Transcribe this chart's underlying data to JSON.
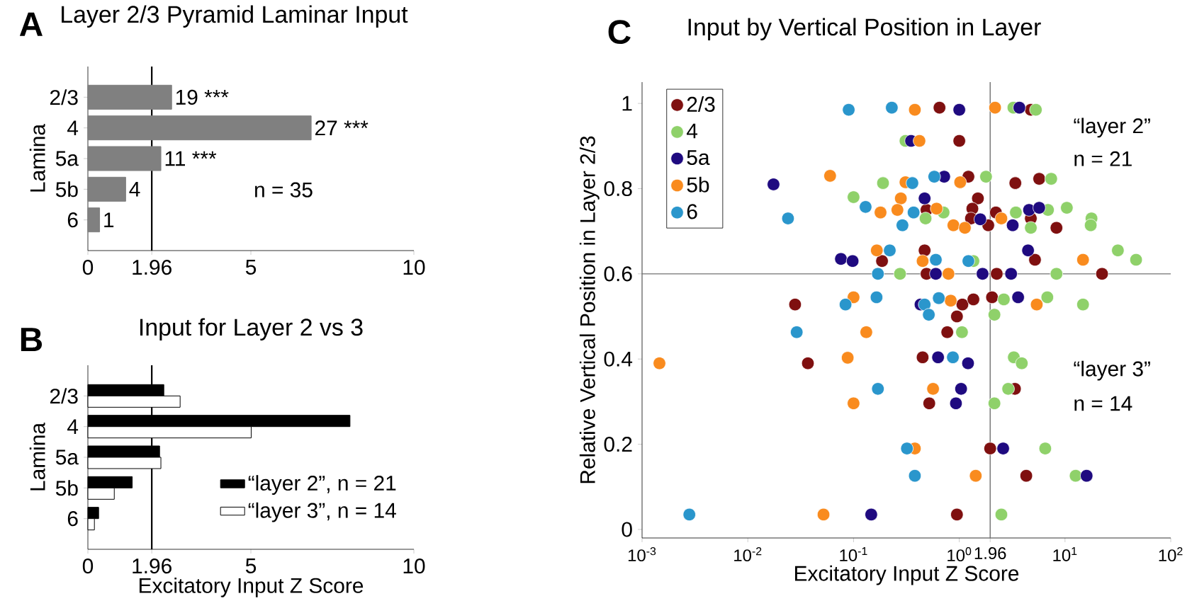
{
  "chart_data": [
    {
      "type": "bar",
      "orientation": "horizontal",
      "title": "Layer 2/3 Pyramid Laminar Input",
      "ylabel": "Lamina",
      "annotations": [
        "A",
        "n = 35",
        {
          "text": "19 ***",
          "x": 2.57,
          "y": "2/3"
        },
        {
          "text": "27 ***",
          "x": 6.85,
          "y": "4"
        },
        {
          "text": "11 ***",
          "x": 2.24,
          "y": "5a"
        },
        {
          "text": "4",
          "x": 1.16,
          "y": "5b"
        },
        {
          "text": "1",
          "x": 0.36,
          "y": "6"
        }
      ],
      "categories": [
        "2/3",
        "4",
        "5a",
        "5b",
        "6"
      ],
      "values": [
        2.57,
        6.85,
        2.24,
        1.16,
        0.36
      ],
      "color": "#808080",
      "xlim": [
        0,
        10
      ],
      "xticks": [
        0,
        1.96,
        5,
        10
      ],
      "ref_lines": [
        {
          "axis": "x",
          "value": 1.96,
          "color": "#000000"
        }
      ],
      "legend": false
    },
    {
      "type": "bar",
      "orientation": "horizontal",
      "title": "Input for Layer 2 vs 3",
      "xlabel": "Excitatory Input Z Score",
      "ylabel": "Lamina",
      "annotations": [
        "B"
      ],
      "categories": [
        "2/3",
        "4",
        "5a",
        "5b",
        "6"
      ],
      "series": [
        {
          "name": "“layer 2”, n = 21",
          "color": "#000000",
          "values": [
            2.33,
            8.04,
            2.2,
            1.36,
            0.33
          ]
        },
        {
          "name": "“layer 3”, n = 14",
          "color": "#ffffff",
          "values": [
            2.83,
            5.01,
            2.24,
            0.81,
            0.2
          ]
        }
      ],
      "xlim": [
        0,
        10
      ],
      "xticks": [
        0,
        1.96,
        5,
        10
      ],
      "ref_lines": [
        {
          "axis": "x",
          "value": 1.96,
          "color": "#000000"
        }
      ],
      "legend": "bottom right"
    },
    {
      "type": "scatter",
      "title": "Input by Vertical Position in Layer",
      "xlabel": "Excitatory Input Z Score",
      "ylabel": "Relative Vertical Position in Layer 2/3",
      "annotations": [
        "C",
        "“layer 2”",
        "n = 21",
        "“layer 3”",
        "n = 14"
      ],
      "log": "x",
      "marker": "circle",
      "legend": "top left",
      "xlim": [
        0.001,
        100
      ],
      "xticks": [
        {
          "value": 0.001,
          "label": "10$^{-3}$"
        },
        {
          "value": 0.01,
          "label": "10$^{-2}$"
        },
        {
          "value": 0.1,
          "label": "10$^{-1}$"
        },
        {
          "value": 1,
          "label": "10$^{0}$"
        },
        1.96,
        {
          "value": 10,
          "label": "10$^{1}$"
        },
        {
          "value": 100,
          "label": "10$^{2}$"
        }
      ],
      "ylim": [
        -0.02,
        1.05
      ],
      "yticks": [
        0,
        0.2,
        0.4,
        0.6,
        0.8,
        1
      ],
      "ref_lines": [
        {
          "axis": "x",
          "value": 1.96,
          "color": "#707070"
        },
        {
          "axis": "y",
          "value": 0.6,
          "color": "#707070"
        }
      ],
      "series": [
        {
          "name": "2/3",
          "color": "#7f1010",
          "x": [
            0.028,
            0.037,
            1.07,
            1.36,
            0.95,
            2.04,
            0.77,
            0.45,
            3.36,
            0.52,
            1.96,
            4.3,
            0.95,
            0.65,
            4.75,
            1.0,
            1.22,
            3.39,
            5.7,
            0.49,
            1.5,
            1.33,
            1.29,
            2.22,
            1.88,
            4.75,
            8.3,
            5.2,
            0.186,
            0.47,
            0.49,
            2.26,
            22.4
          ],
          "values": [
            0.528,
            0.39,
            0.528,
            0.54,
            0.5,
            0.545,
            0.463,
            0.404,
            0.33,
            0.296,
            0.19,
            0.126,
            0.035,
            0.99,
            0.985,
            0.912,
            0.828,
            0.813,
            0.823,
            0.75,
            0.777,
            0.753,
            0.73,
            0.744,
            0.714,
            0.73,
            0.708,
            0.633,
            0.63,
            0.655,
            0.6,
            0.6,
            0.6
          ]
        },
        {
          "name": "4",
          "color": "#8fd16a",
          "x": [
            0.1,
            2.64,
            6.8,
            14.8,
            2.15,
            1.06,
            3.28,
            3.9,
            2.9,
            2.15,
            6.5,
            12.6,
            2.5,
            3.25,
            5.3,
            0.31,
            1.79,
            7.4,
            0.19,
            0.71,
            0.48,
            3.43,
            4.75,
            6.9,
            10.4,
            17.8,
            17.5,
            31.6,
            47,
            1.36,
            0.275,
            8.3
          ],
          "values": [
            0.78,
            0.54,
            0.545,
            0.528,
            0.504,
            0.463,
            0.404,
            0.39,
            0.33,
            0.296,
            0.19,
            0.126,
            0.035,
            0.99,
            0.985,
            0.912,
            0.828,
            0.823,
            0.813,
            0.744,
            0.73,
            0.744,
            0.708,
            0.75,
            0.755,
            0.73,
            0.714,
            0.655,
            0.633,
            0.63,
            0.6,
            0.6
          ]
        },
        {
          "name": "5a",
          "color": "#1f0a80",
          "x": [
            0.0175,
            0.076,
            0.098,
            0.147,
            0.43,
            3.6,
            0.63,
            1.21,
            1.04,
            0.93,
            2.6,
            16,
            1.0,
            3.7,
            0.35,
            0.72,
            0.47,
            1.58,
            3.2,
            4.57,
            5.7,
            4.47,
            0.6,
            1.66,
            3.09
          ],
          "values": [
            0.81,
            0.635,
            0.63,
            0.035,
            0.528,
            0.545,
            0.404,
            0.39,
            0.33,
            0.296,
            0.19,
            0.126,
            0.985,
            0.99,
            0.912,
            0.828,
            0.777,
            0.728,
            0.714,
            0.75,
            0.755,
            0.655,
            0.6,
            0.6,
            0.6
          ]
        },
        {
          "name": "5b",
          "color": "#f98b1e",
          "x": [
            0.06,
            0.166,
            0.1,
            0.132,
            0.00146,
            0.088,
            0.1,
            0.052,
            0.83,
            5.4,
            0.565,
            0.38,
            1.43,
            0.38,
            2.18,
            0.42,
            1.02,
            0.31,
            0.28,
            0.18,
            0.26,
            0.61,
            0.88,
            1.13,
            2.5,
            14.8,
            0.45,
            0.79
          ],
          "values": [
            0.83,
            0.655,
            0.545,
            0.463,
            0.39,
            0.403,
            0.296,
            0.035,
            0.537,
            0.528,
            0.33,
            0.19,
            0.126,
            0.985,
            0.99,
            0.912,
            0.815,
            0.815,
            0.777,
            0.744,
            0.75,
            0.753,
            0.714,
            0.708,
            0.73,
            0.633,
            0.63,
            0.6
          ]
        },
        {
          "name": "6",
          "color": "#2a96cc",
          "x": [
            0.09,
            0.13,
            0.024,
            0.084,
            0.029,
            0.17,
            0.0028,
            0.165,
            0.17,
            0.47,
            0.64,
            0.515,
            0.87,
            0.32,
            0.38,
            0.23,
            0.58,
            0.36,
            0.37,
            0.29,
            0.22,
            0.6,
            1.22
          ],
          "values": [
            0.985,
            0.757,
            0.73,
            0.528,
            0.463,
            0.33,
            0.035,
            0.545,
            0.6,
            0.528,
            0.543,
            0.504,
            0.404,
            0.19,
            0.126,
            0.99,
            0.828,
            0.813,
            0.744,
            0.714,
            0.655,
            0.633,
            0.63
          ]
        }
      ]
    }
  ]
}
